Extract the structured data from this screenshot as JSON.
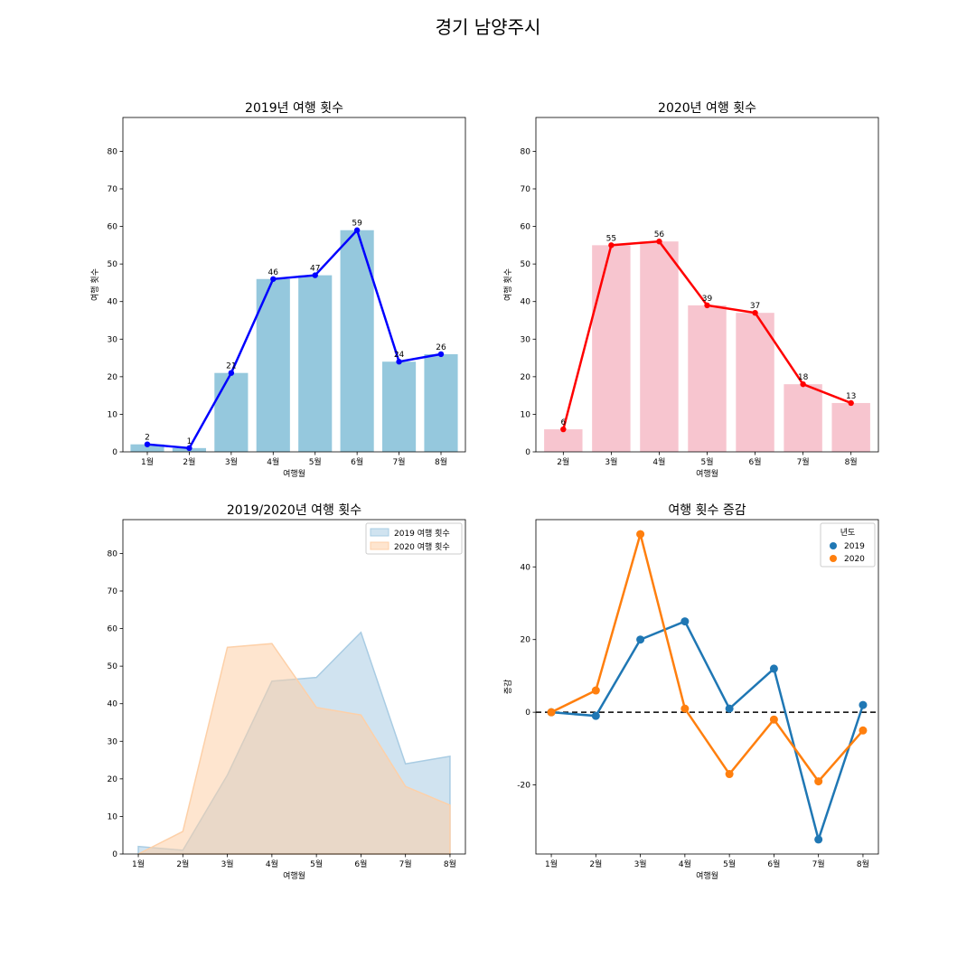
{
  "suptitle": "경기 남양주시",
  "chart_data": [
    {
      "type": "bar",
      "title": "2019년 여행 횟수",
      "xlabel": "여행월",
      "ylabel": "여행 횟수",
      "categories": [
        "1월",
        "2월",
        "3월",
        "4월",
        "5월",
        "6월",
        "7월",
        "8월"
      ],
      "values": [
        2,
        1,
        21,
        46,
        47,
        59,
        24,
        26
      ],
      "overlay_line": true,
      "ylim": [
        0,
        89
      ],
      "yticks": [
        0,
        10,
        20,
        30,
        40,
        50,
        60,
        70,
        80
      ],
      "bar_color": "#95c8dd",
      "line_color": "#0000ff",
      "grid": false
    },
    {
      "type": "bar",
      "title": "2020년 여행 횟수",
      "xlabel": "여행월",
      "ylabel": "여행 횟수",
      "categories": [
        "2월",
        "3월",
        "4월",
        "5월",
        "6월",
        "7월",
        "8월"
      ],
      "values": [
        6,
        55,
        56,
        39,
        37,
        18,
        13
      ],
      "overlay_line": true,
      "ylim": [
        0,
        89
      ],
      "yticks": [
        0,
        10,
        20,
        30,
        40,
        50,
        60,
        70,
        80
      ],
      "bar_color": "#f7c5cf",
      "line_color": "#ff0000",
      "grid": false
    },
    {
      "type": "area",
      "title": "2019/2020년 여행 횟수",
      "xlabel": "여행월",
      "categories": [
        "1월",
        "2월",
        "3월",
        "4월",
        "5월",
        "6월",
        "7월",
        "8월"
      ],
      "series": [
        {
          "name": "2019 여행 횟수",
          "values": [
            2,
            1,
            21,
            46,
            47,
            59,
            24,
            26
          ],
          "color": "#a9cce3"
        },
        {
          "name": "2020 여행 횟수",
          "values": [
            0,
            6,
            55,
            56,
            39,
            37,
            18,
            13
          ],
          "color": "#fdd0a8"
        }
      ],
      "ylim": [
        0,
        89
      ],
      "yticks": [
        0,
        10,
        20,
        30,
        40,
        50,
        60,
        70,
        80
      ],
      "legend": "top-right",
      "grid": false
    },
    {
      "type": "line",
      "title": "여행 횟수 증감",
      "xlabel": "여행월",
      "ylabel": "증감",
      "categories": [
        "1월",
        "2월",
        "3월",
        "4월",
        "5월",
        "6월",
        "7월",
        "8월"
      ],
      "series": [
        {
          "name": "2019",
          "values": [
            0,
            -1,
            20,
            25,
            1,
            12,
            -35,
            2
          ],
          "color": "#1f77b4"
        },
        {
          "name": "2020",
          "values": [
            0,
            6,
            49,
            1,
            -17,
            -2,
            -19,
            -5
          ],
          "color": "#ff7f0e"
        }
      ],
      "legend_title": "년도",
      "legend": "top-right",
      "reference_line": 0,
      "ylim": [
        -39,
        53
      ],
      "yticks": [
        -20,
        0,
        20,
        40
      ],
      "grid": false
    }
  ]
}
